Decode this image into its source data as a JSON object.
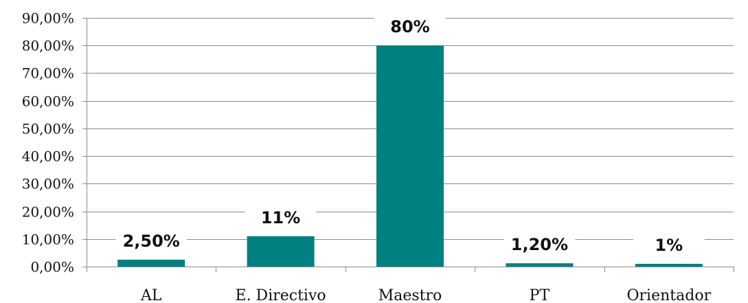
{
  "chart_data": {
    "type": "bar",
    "categories": [
      "AL",
      "E. Directivo",
      "Maestro",
      "PT",
      "Orientador"
    ],
    "values": [
      2.5,
      11,
      80,
      1.2,
      1
    ],
    "data_labels": [
      "2,50%",
      "11%",
      "80%",
      "1,20%",
      "1%"
    ],
    "ylim": [
      0,
      90
    ],
    "yticks": [
      0,
      10,
      20,
      30,
      40,
      50,
      60,
      70,
      80,
      90
    ],
    "ytick_labels": [
      "0,00%",
      "10,00%",
      "20,00%",
      "30,00%",
      "40,00%",
      "50,00%",
      "60,00%",
      "70,00%",
      "80,00%",
      "90,00%"
    ],
    "grid": true,
    "bar_color": "#008080",
    "title": "",
    "xlabel": "",
    "ylabel": ""
  }
}
